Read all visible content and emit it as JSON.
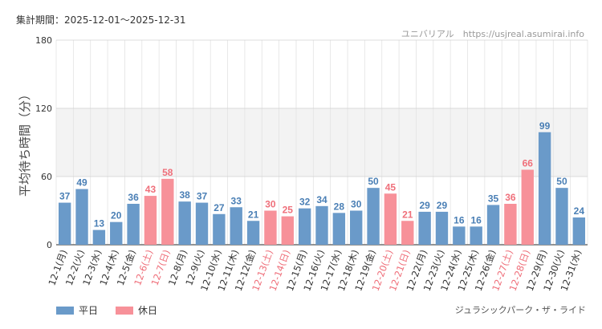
{
  "header": {
    "period": "集計期間：2025-12-01〜2025-12-31",
    "source": "ユニバリアル　https://usjreal.asumirai.info"
  },
  "footer": {
    "attraction": "ジュラシックパーク・ザ・ライド"
  },
  "legend": {
    "weekday_label": "平日",
    "holiday_label": "休日"
  },
  "colors": {
    "weekday": "#6a9ac9",
    "holiday": "#f79199",
    "weekday_text": "#4a7fb5",
    "holiday_text": "#ef6f7a",
    "band": "#f3f3f3",
    "grid": "#e3e3e3"
  },
  "chart_data": {
    "type": "bar",
    "ylabel": "平均待ち時間（分）",
    "ylim": [
      0,
      180
    ],
    "yticks": [
      0,
      60,
      120,
      180
    ],
    "highlight_band": [
      60,
      120
    ],
    "categories": [
      "12-1(月)",
      "12-2(火)",
      "12-3(水)",
      "12-4(木)",
      "12-5(金)",
      "12-6(土)",
      "12-7(日)",
      "12-8(月)",
      "12-9(火)",
      "12-10(水)",
      "12-11(木)",
      "12-12(金)",
      "12-13(土)",
      "12-14(日)",
      "12-15(月)",
      "12-16(火)",
      "12-17(水)",
      "12-18(木)",
      "12-19(金)",
      "12-20(土)",
      "12-21(日)",
      "12-22(月)",
      "12-23(火)",
      "12-24(水)",
      "12-25(木)",
      "12-26(金)",
      "12-27(土)",
      "12-28(日)",
      "12-29(月)",
      "12-30(火)",
      "12-31(水)"
    ],
    "values": [
      37,
      49,
      13,
      20,
      36,
      43,
      58,
      38,
      37,
      27,
      33,
      21,
      30,
      25,
      32,
      34,
      28,
      30,
      50,
      45,
      21,
      29,
      29,
      16,
      16,
      35,
      36,
      66,
      99,
      50,
      24
    ],
    "day_type": [
      "平日",
      "平日",
      "平日",
      "平日",
      "平日",
      "休日",
      "休日",
      "平日",
      "平日",
      "平日",
      "平日",
      "平日",
      "休日",
      "休日",
      "平日",
      "平日",
      "平日",
      "平日",
      "平日",
      "休日",
      "休日",
      "平日",
      "平日",
      "平日",
      "平日",
      "平日",
      "休日",
      "休日",
      "平日",
      "平日",
      "平日"
    ]
  }
}
